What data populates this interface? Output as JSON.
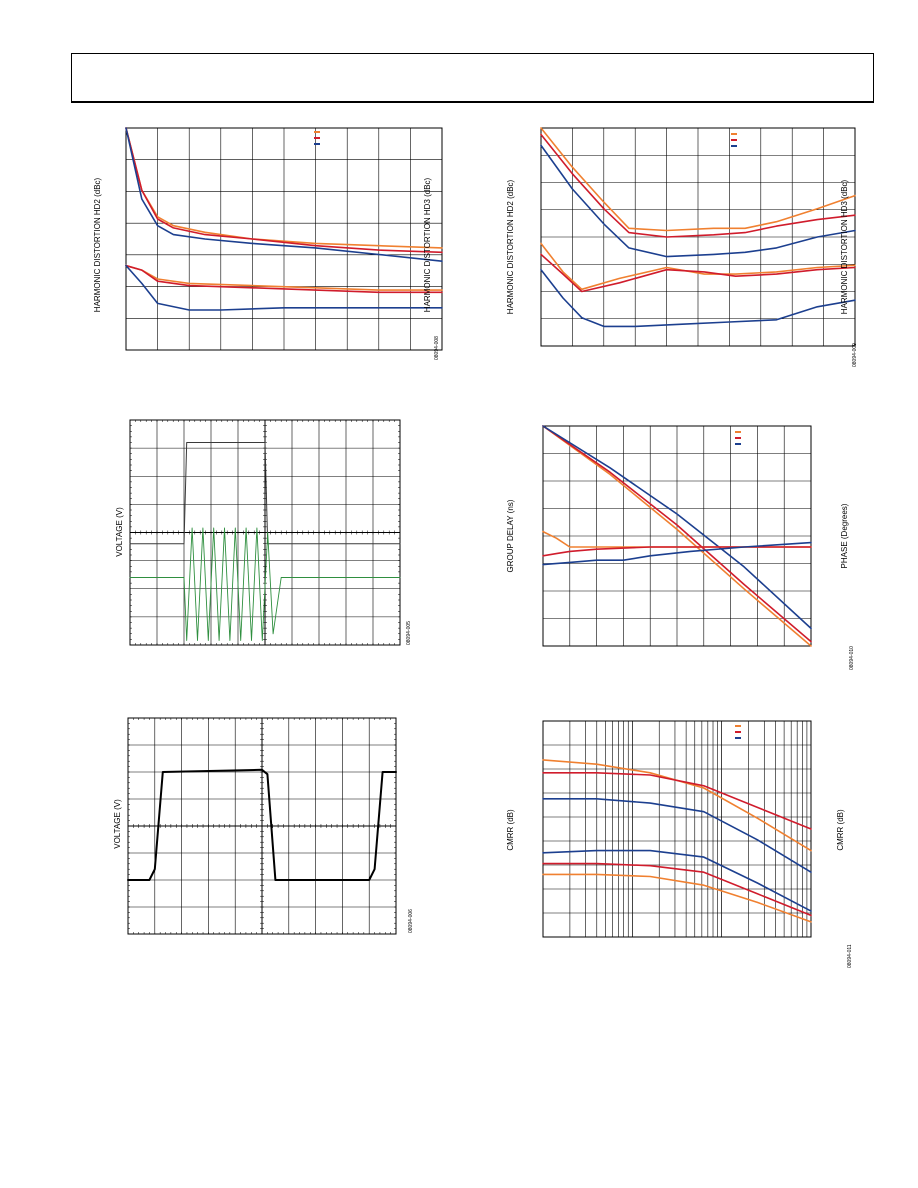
{
  "header": {},
  "colors": {
    "orange": "#f08030",
    "red": "#d01c2c",
    "blue": "#1c3f8f",
    "dark_trace": "#3a3a3a",
    "green_trace": "#2f8f3f",
    "grid": "#000000"
  },
  "chart_data": [
    {
      "id": "fig1",
      "type": "line",
      "ylabel": "HARMONIC DISTORTION HD2 (dBc)",
      "ylabel2": "HARMONIC DISTORTION HD3 (dBc)",
      "fig_id": "08094-008",
      "grid": true,
      "log_x": false,
      "legend": "top-right",
      "series": [
        {
          "color": "orange",
          "points": [
            [
              0.0,
              1.0
            ],
            [
              0.05,
              0.72
            ],
            [
              0.1,
              0.6
            ],
            [
              0.15,
              0.56
            ],
            [
              0.25,
              0.53
            ],
            [
              0.4,
              0.5
            ],
            [
              0.6,
              0.48
            ],
            [
              0.8,
              0.47
            ],
            [
              1.0,
              0.46
            ]
          ]
        },
        {
          "color": "red",
          "points": [
            [
              0.0,
              1.0
            ],
            [
              0.05,
              0.72
            ],
            [
              0.1,
              0.59
            ],
            [
              0.15,
              0.55
            ],
            [
              0.25,
              0.52
            ],
            [
              0.4,
              0.5
            ],
            [
              0.6,
              0.47
            ],
            [
              0.8,
              0.45
            ],
            [
              1.0,
              0.44
            ]
          ]
        },
        {
          "color": "blue",
          "points": [
            [
              0.0,
              1.0
            ],
            [
              0.05,
              0.68
            ],
            [
              0.1,
              0.56
            ],
            [
              0.15,
              0.52
            ],
            [
              0.25,
              0.5
            ],
            [
              0.4,
              0.48
            ],
            [
              0.6,
              0.46
            ],
            [
              0.8,
              0.43
            ],
            [
              1.0,
              0.4
            ]
          ]
        },
        {
          "color": "orange",
          "points": [
            [
              0.0,
              0.38
            ],
            [
              0.05,
              0.36
            ],
            [
              0.1,
              0.32
            ],
            [
              0.2,
              0.3
            ],
            [
              0.4,
              0.29
            ],
            [
              0.6,
              0.28
            ],
            [
              0.8,
              0.27
            ],
            [
              1.0,
              0.27
            ]
          ]
        },
        {
          "color": "red",
          "points": [
            [
              0.0,
              0.38
            ],
            [
              0.05,
              0.36
            ],
            [
              0.1,
              0.31
            ],
            [
              0.2,
              0.29
            ],
            [
              0.4,
              0.28
            ],
            [
              0.6,
              0.27
            ],
            [
              0.8,
              0.26
            ],
            [
              1.0,
              0.26
            ]
          ]
        },
        {
          "color": "blue",
          "points": [
            [
              0.0,
              0.38
            ],
            [
              0.05,
              0.3
            ],
            [
              0.1,
              0.21
            ],
            [
              0.2,
              0.18
            ],
            [
              0.3,
              0.18
            ],
            [
              0.5,
              0.19
            ],
            [
              0.7,
              0.19
            ],
            [
              1.0,
              0.19
            ]
          ]
        }
      ]
    },
    {
      "id": "fig2",
      "type": "line",
      "ylabel": "HARMONIC DISTORTION HD2 (dBc)",
      "ylabel2": "HARMONIC DISTORTION HD3 (dBc)",
      "fig_id": "08094-009",
      "grid": true,
      "log_x": false,
      "legend": "top-right",
      "series": [
        {
          "color": "orange",
          "points": [
            [
              0.0,
              1.0
            ],
            [
              0.1,
              0.82
            ],
            [
              0.2,
              0.66
            ],
            [
              0.28,
              0.54
            ],
            [
              0.4,
              0.53
            ],
            [
              0.55,
              0.54
            ],
            [
              0.65,
              0.54
            ],
            [
              0.75,
              0.57
            ],
            [
              0.88,
              0.63
            ],
            [
              1.0,
              0.69
            ]
          ]
        },
        {
          "color": "red",
          "points": [
            [
              0.0,
              0.97
            ],
            [
              0.1,
              0.79
            ],
            [
              0.2,
              0.63
            ],
            [
              0.28,
              0.52
            ],
            [
              0.4,
              0.5
            ],
            [
              0.55,
              0.51
            ],
            [
              0.65,
              0.52
            ],
            [
              0.75,
              0.55
            ],
            [
              0.88,
              0.58
            ],
            [
              1.0,
              0.6
            ]
          ]
        },
        {
          "color": "blue",
          "points": [
            [
              0.0,
              0.92
            ],
            [
              0.1,
              0.72
            ],
            [
              0.2,
              0.56
            ],
            [
              0.28,
              0.45
            ],
            [
              0.4,
              0.41
            ],
            [
              0.55,
              0.42
            ],
            [
              0.65,
              0.43
            ],
            [
              0.75,
              0.45
            ],
            [
              0.88,
              0.5
            ],
            [
              1.0,
              0.53
            ]
          ]
        },
        {
          "color": "orange",
          "points": [
            [
              0.0,
              0.47
            ],
            [
              0.07,
              0.34
            ],
            [
              0.13,
              0.26
            ],
            [
              0.25,
              0.31
            ],
            [
              0.4,
              0.36
            ],
            [
              0.52,
              0.33
            ],
            [
              0.62,
              0.33
            ],
            [
              0.75,
              0.34
            ],
            [
              0.88,
              0.36
            ],
            [
              1.0,
              0.37
            ]
          ]
        },
        {
          "color": "red",
          "points": [
            [
              0.0,
              0.42
            ],
            [
              0.07,
              0.33
            ],
            [
              0.13,
              0.25
            ],
            [
              0.25,
              0.29
            ],
            [
              0.4,
              0.35
            ],
            [
              0.52,
              0.34
            ],
            [
              0.62,
              0.32
            ],
            [
              0.75,
              0.33
            ],
            [
              0.88,
              0.35
            ],
            [
              1.0,
              0.36
            ]
          ]
        },
        {
          "color": "blue",
          "points": [
            [
              0.0,
              0.35
            ],
            [
              0.07,
              0.22
            ],
            [
              0.13,
              0.13
            ],
            [
              0.2,
              0.09
            ],
            [
              0.3,
              0.09
            ],
            [
              0.45,
              0.1
            ],
            [
              0.6,
              0.11
            ],
            [
              0.75,
              0.12
            ],
            [
              0.88,
              0.18
            ],
            [
              1.0,
              0.21
            ]
          ]
        }
      ]
    },
    {
      "id": "fig3",
      "type": "line",
      "ylabel": "VOLTAGE (V)",
      "fig_id": "08094-005",
      "grid": true,
      "log_x": false,
      "scope": true,
      "series": [
        {
          "color": "dark_trace",
          "width": 1.0,
          "points": [
            [
              0.0,
              0.45
            ],
            [
              0.2,
              0.45
            ],
            [
              0.21,
              0.9
            ],
            [
              0.5,
              0.9
            ],
            [
              0.51,
              0.45
            ],
            [
              1.0,
              0.45
            ]
          ]
        },
        {
          "color": "green_trace",
          "width": 0.9,
          "points": [
            [
              0.0,
              0.3
            ],
            [
              0.2,
              0.3
            ],
            [
              0.21,
              0.02
            ],
            [
              0.23,
              0.52
            ],
            [
              0.25,
              0.02
            ],
            [
              0.27,
              0.52
            ],
            [
              0.29,
              0.02
            ],
            [
              0.31,
              0.52
            ],
            [
              0.33,
              0.02
            ],
            [
              0.35,
              0.52
            ],
            [
              0.37,
              0.02
            ],
            [
              0.39,
              0.52
            ],
            [
              0.41,
              0.02
            ],
            [
              0.43,
              0.52
            ],
            [
              0.45,
              0.02
            ],
            [
              0.47,
              0.52
            ],
            [
              0.49,
              0.02
            ],
            [
              0.51,
              0.5
            ],
            [
              0.53,
              0.05
            ],
            [
              0.56,
              0.3
            ],
            [
              1.0,
              0.3
            ]
          ]
        }
      ]
    },
    {
      "id": "fig4",
      "type": "line",
      "ylabel": "GROUP DELAY (ns)",
      "ylabel2": "PHASE (Degrees)",
      "fig_id": "08094-010",
      "grid": true,
      "log_x": false,
      "legend": "top-right",
      "series": [
        {
          "color": "orange",
          "points": [
            [
              0.0,
              1.0
            ],
            [
              0.25,
              0.78
            ],
            [
              0.5,
              0.53
            ],
            [
              0.75,
              0.26
            ],
            [
              1.0,
              0.0
            ]
          ]
        },
        {
          "color": "red",
          "points": [
            [
              0.0,
              1.0
            ],
            [
              0.25,
              0.79
            ],
            [
              0.5,
              0.55
            ],
            [
              0.75,
              0.28
            ],
            [
              1.0,
              0.02
            ]
          ]
        },
        {
          "color": "blue",
          "points": [
            [
              0.0,
              1.0
            ],
            [
              0.25,
              0.81
            ],
            [
              0.5,
              0.6
            ],
            [
              0.75,
              0.36
            ],
            [
              1.0,
              0.08
            ]
          ]
        },
        {
          "color": "orange",
          "points": [
            [
              0.0,
              0.52
            ],
            [
              0.05,
              0.49
            ],
            [
              0.1,
              0.45
            ],
            [
              0.2,
              0.45
            ],
            [
              0.4,
              0.45
            ],
            [
              0.6,
              0.45
            ],
            [
              0.8,
              0.45
            ],
            [
              1.0,
              0.45
            ]
          ]
        },
        {
          "color": "red",
          "points": [
            [
              0.0,
              0.41
            ],
            [
              0.05,
              0.42
            ],
            [
              0.1,
              0.43
            ],
            [
              0.2,
              0.44
            ],
            [
              0.4,
              0.45
            ],
            [
              0.6,
              0.45
            ],
            [
              0.8,
              0.45
            ],
            [
              1.0,
              0.45
            ]
          ]
        },
        {
          "color": "blue",
          "points": [
            [
              0.0,
              0.37
            ],
            [
              0.1,
              0.38
            ],
            [
              0.2,
              0.39
            ],
            [
              0.3,
              0.39
            ],
            [
              0.4,
              0.41
            ],
            [
              0.55,
              0.43
            ],
            [
              0.75,
              0.45
            ],
            [
              1.0,
              0.47
            ]
          ]
        }
      ]
    },
    {
      "id": "fig5",
      "type": "line",
      "ylabel": "VOLTAGE (V)",
      "fig_id": "08094-006",
      "grid": true,
      "log_x": false,
      "scope": true,
      "series": [
        {
          "color": "grid",
          "width": 2.0,
          "points": [
            [
              0.0,
              0.25
            ],
            [
              0.08,
              0.25
            ],
            [
              0.1,
              0.3
            ],
            [
              0.13,
              0.75
            ],
            [
              0.5,
              0.76
            ],
            [
              0.52,
              0.74
            ],
            [
              0.55,
              0.25
            ],
            [
              0.9,
              0.25
            ],
            [
              0.92,
              0.3
            ],
            [
              0.95,
              0.75
            ],
            [
              1.0,
              0.75
            ]
          ]
        }
      ]
    },
    {
      "id": "fig6",
      "type": "line",
      "ylabel": "CMRR (dB)",
      "ylabel2": "CMRR (dB)",
      "fig_id": "08094-011",
      "grid": true,
      "log_x": true,
      "legend": "top-right",
      "series": [
        {
          "color": "orange",
          "points": [
            [
              0.0,
              0.82
            ],
            [
              0.2,
              0.8
            ],
            [
              0.4,
              0.76
            ],
            [
              0.6,
              0.69
            ],
            [
              0.8,
              0.55
            ],
            [
              1.0,
              0.4
            ]
          ]
        },
        {
          "color": "red",
          "points": [
            [
              0.0,
              0.76
            ],
            [
              0.2,
              0.76
            ],
            [
              0.4,
              0.75
            ],
            [
              0.6,
              0.7
            ],
            [
              0.8,
              0.6
            ],
            [
              1.0,
              0.5
            ]
          ]
        },
        {
          "color": "blue",
          "points": [
            [
              0.0,
              0.64
            ],
            [
              0.2,
              0.64
            ],
            [
              0.4,
              0.62
            ],
            [
              0.6,
              0.58
            ],
            [
              0.8,
              0.45
            ],
            [
              1.0,
              0.3
            ]
          ]
        },
        {
          "color": "blue",
          "points": [
            [
              0.0,
              0.39
            ],
            [
              0.2,
              0.4
            ],
            [
              0.4,
              0.4
            ],
            [
              0.6,
              0.37
            ],
            [
              0.8,
              0.25
            ],
            [
              1.0,
              0.12
            ]
          ]
        },
        {
          "color": "red",
          "points": [
            [
              0.0,
              0.34
            ],
            [
              0.2,
              0.34
            ],
            [
              0.4,
              0.33
            ],
            [
              0.6,
              0.3
            ],
            [
              0.8,
              0.2
            ],
            [
              1.0,
              0.1
            ]
          ]
        },
        {
          "color": "orange",
          "points": [
            [
              0.0,
              0.29
            ],
            [
              0.2,
              0.29
            ],
            [
              0.4,
              0.28
            ],
            [
              0.6,
              0.24
            ],
            [
              0.8,
              0.16
            ],
            [
              1.0,
              0.07
            ]
          ]
        }
      ]
    }
  ]
}
